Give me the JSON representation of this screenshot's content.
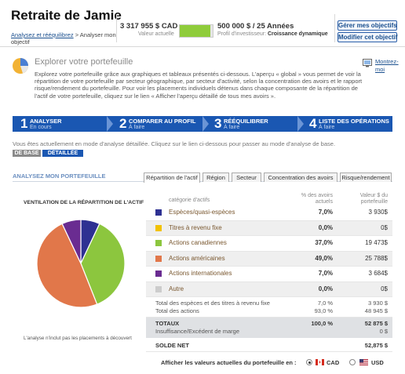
{
  "header": {
    "title": "Retraite de Jamie",
    "breadcrumb_link": "Analysez et rééquilibrez",
    "breadcrumb_rest": " > Analyser mon objectif",
    "current_value": "3 317 955 $ CAD",
    "current_value_label": "Valeur actuelle",
    "goal_progress_fraction": 0.93,
    "target": "500 000 $ / 25 Années",
    "profile_label": "Profil d'investisseur: ",
    "profile_value": "Croissance dynamique",
    "manage_button": "Gérer mes objectifs",
    "modify_button": "Modifier cet objectif"
  },
  "intro": {
    "title": "Explorer votre portefeuille",
    "text": "Explorez votre portefeuille grâce aux graphiques et tableaux présentés ci-dessous. L'aperçu « global » vous permet de voir la répartition de votre portefeuille par secteur géographique, par secteur d'activité, selon la concentration des avoirs et le rapport risque/rendement du portefeuille. Pour voir les placements individuels détenus dans chaque composante de la répartition de l'actif de votre portefeuille, cliquez sur le lien « Afficher l'aperçu détaillé de tous mes avoirs ».",
    "help_link": "Montrez-moi"
  },
  "steps": [
    {
      "num": "1",
      "title": "ANALYSER",
      "status": "En cours"
    },
    {
      "num": "2",
      "title": "COMPARER AU PROFIL",
      "status": "À faire"
    },
    {
      "num": "3",
      "title": "RÉÉQUILIBRER",
      "status": "À faire"
    },
    {
      "num": "4",
      "title": "LISTE DES OPÉRATIONS",
      "status": "À faire"
    }
  ],
  "mode": {
    "note": "Vous êtes actuellement en mode d'analyse détaillée.  Cliquez sur le lien ci-dessous pour passer au mode d'analyse de base.",
    "basic": "DE BASE",
    "detailed": "DÉTAILLÉE"
  },
  "section_title": "ANALYSEZ MON PORTEFEUILLE",
  "tabs": [
    "Répartition de l'actif",
    "Région",
    "Secteur",
    "Concentration des avoirs",
    "Risque/rendement"
  ],
  "chart_title": "VENTILATION DE LA RÉPARTITION DE L'ACTIF",
  "chart_note": "L'analyse n'inclut pas les placements à découvert",
  "table": {
    "col_category": "catégorie d'actifs",
    "col_pct": "% des avoirs actuels",
    "col_value": "Valeur $ du portefeuille",
    "rows": [
      {
        "label": "Espèces/quasi-espèces",
        "pct": "7,0%",
        "value": "3 930$",
        "color": "#2e3192"
      },
      {
        "label": "Titres à revenu fixe",
        "pct": "0,0%",
        "value": "0$",
        "color": "#f2c200"
      },
      {
        "label": "Actions canadiennes",
        "pct": "37,0%",
        "value": "19 473$",
        "color": "#8cc63e"
      },
      {
        "label": "Actions américaines",
        "pct": "49,0%",
        "value": "25 788$",
        "color": "#e1774a"
      },
      {
        "label": "Actions internationales",
        "pct": "7,0%",
        "value": "3 684$",
        "color": "#6a2c91"
      },
      {
        "label": "Autre",
        "pct": "0,0%",
        "value": "0$",
        "color": "#cccccc"
      }
    ],
    "total_cash_fixed_label": "Total des espèces et des titres à revenu fixe",
    "total_cash_fixed_pct": "7,0 %",
    "total_cash_fixed_value": "3 930 $",
    "total_stocks_label": "Total des actions",
    "total_stocks_pct": "93,0 %",
    "total_stocks_value": "48 945 $",
    "totals_label": "TOTAUX",
    "totals_pct": "100,0 %",
    "totals_value": "52 875 $",
    "margin_label": "Insuffisance/Excédent de marge",
    "margin_value": "0 $",
    "net_label": "SOLDE NET",
    "net_value": "52,875 $"
  },
  "currency": {
    "label": "Afficher les valeurs actuelles du portefeuille en :",
    "cad": "CAD",
    "usd": "USD"
  },
  "chart_data": {
    "type": "pie",
    "title": "VENTILATION DE LA RÉPARTITION DE L'ACTIF",
    "categories": [
      "Espèces/quasi-espèces",
      "Titres à revenu fixe",
      "Actions canadiennes",
      "Actions américaines",
      "Actions internationales",
      "Autre"
    ],
    "values": [
      7.0,
      0.0,
      37.0,
      49.0,
      7.0,
      0.0
    ],
    "colors": [
      "#2e3192",
      "#f2c200",
      "#8cc63e",
      "#e1774a",
      "#6a2c91",
      "#cccccc"
    ]
  }
}
